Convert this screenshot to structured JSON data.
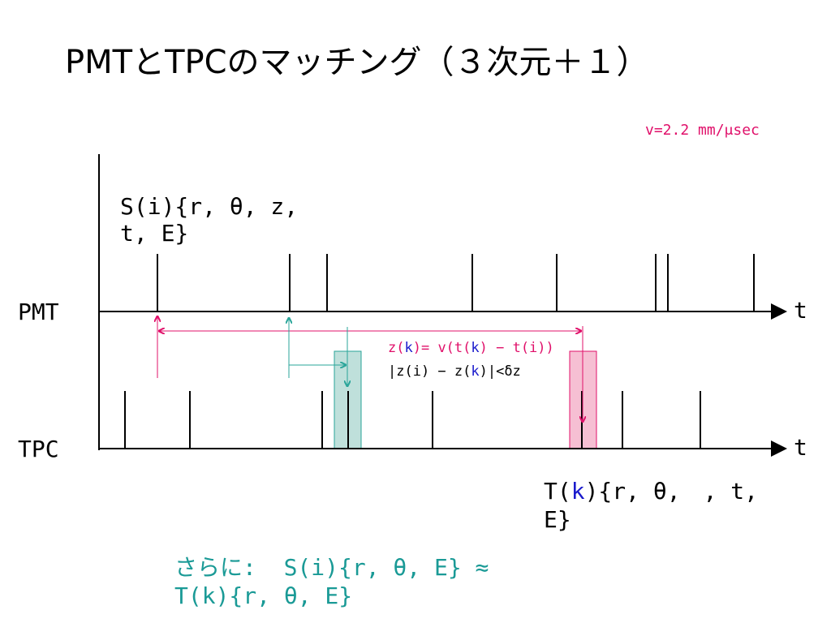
{
  "title": "PMTとTPCのマッチング（３次元＋１）",
  "velocity": "v=2.2 mm/μsec",
  "pmt_hit_label": "S(i){r, θ, z, t, E}",
  "axes": {
    "pmt": "PMT",
    "tpc": "TPC",
    "pmt_time": "t",
    "tpc_time": "t"
  },
  "formula_z": [
    "z(",
    "k",
    ")= v(t(",
    "k",
    ") − t(i))"
  ],
  "formula_cut": [
    "|z(i) − z(",
    "k",
    ")|<δz"
  ],
  "tpc_hit_label": [
    "T(",
    "k",
    "){r, θ,　, t, E}"
  ],
  "conclusion": "さらに:  S(i){r, θ, E} ≈ T(k){r, θ, E}"
}
